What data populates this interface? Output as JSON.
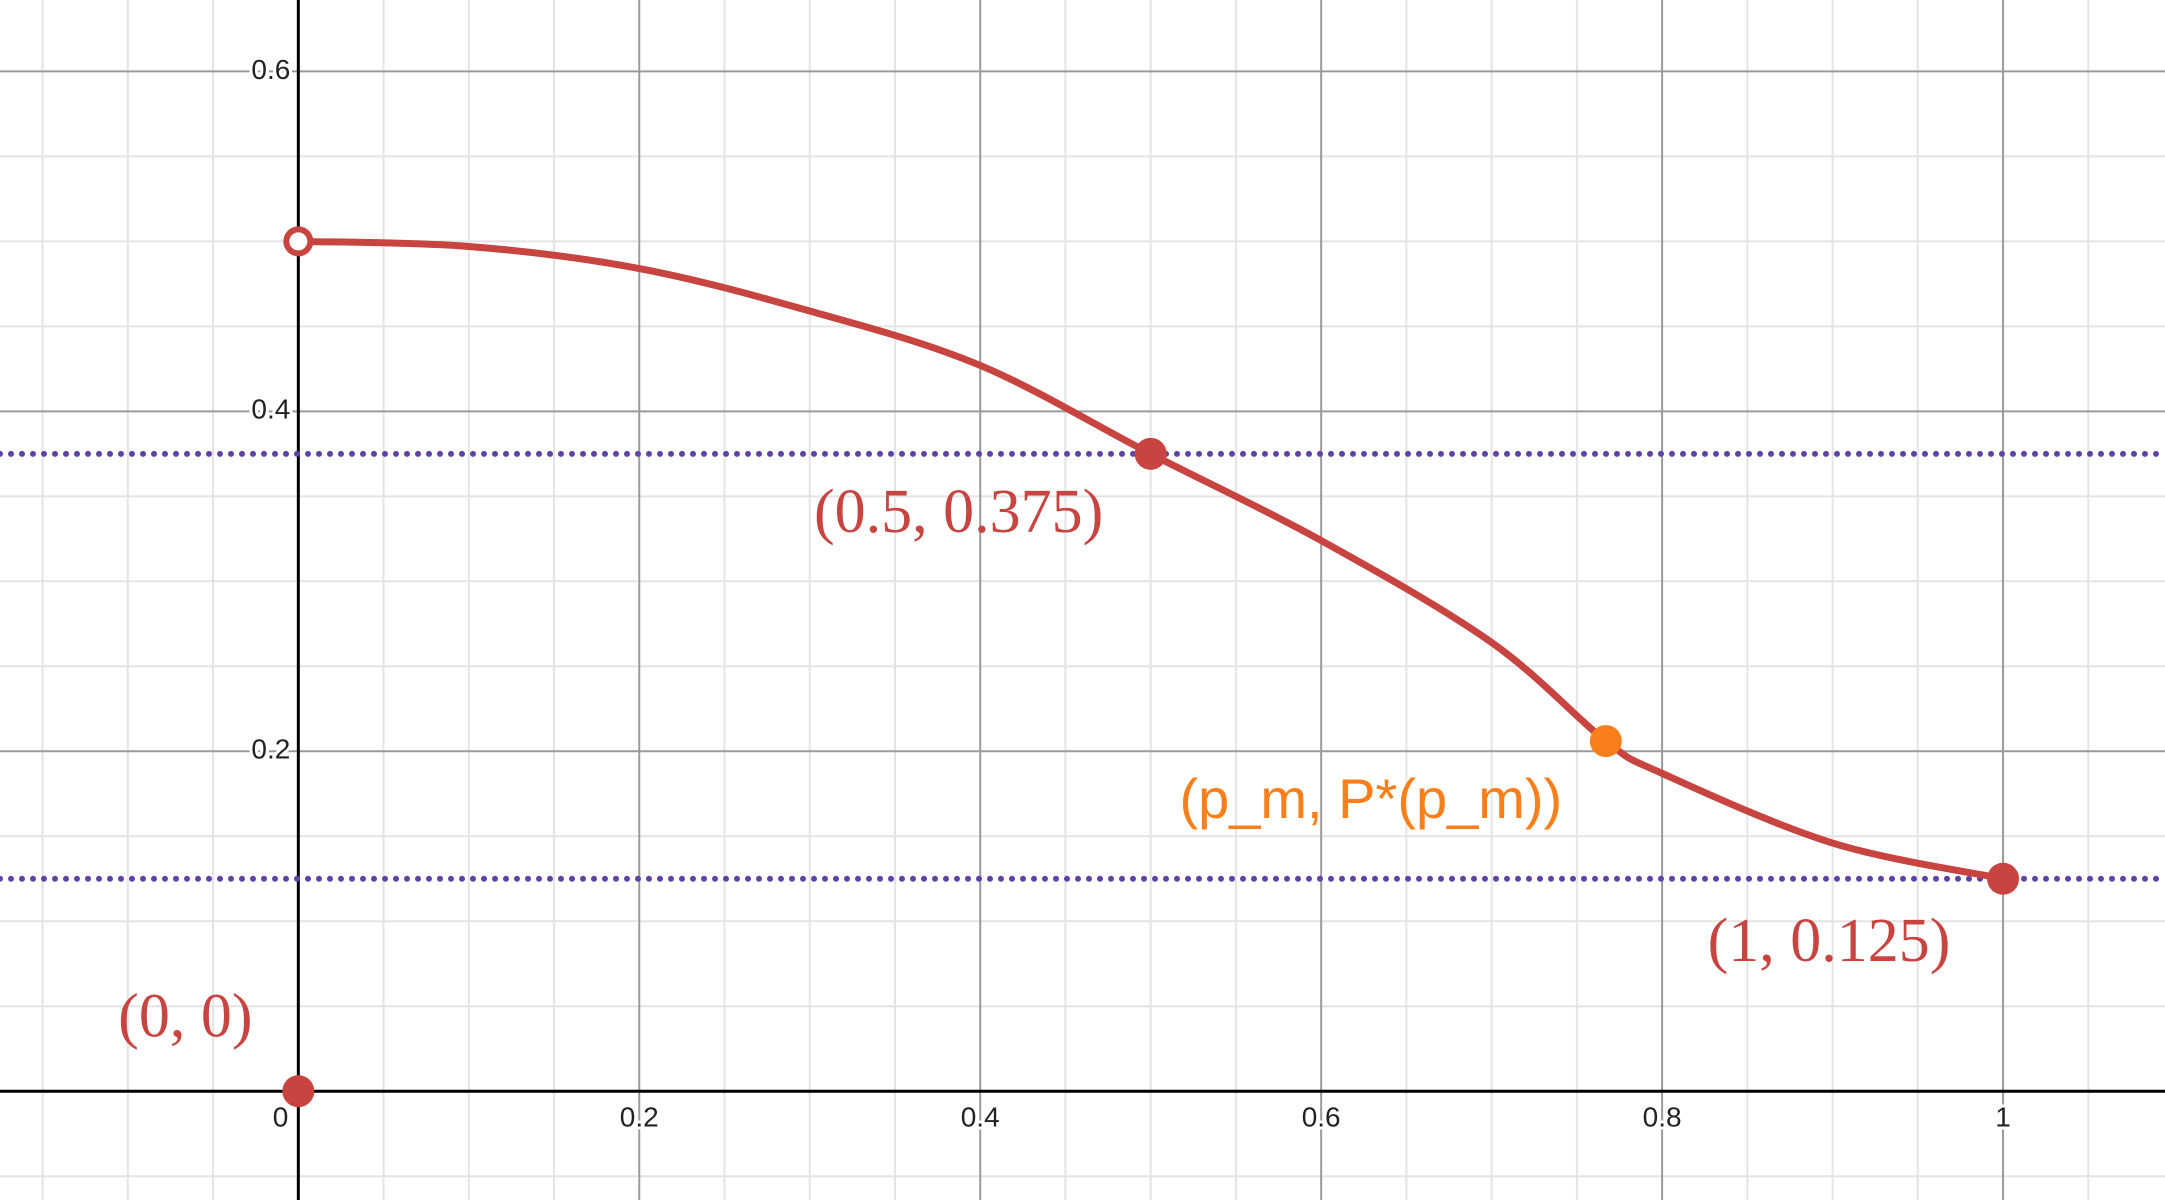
{
  "chart_data": {
    "type": "line",
    "xlim": [
      -0.175,
      1.095
    ],
    "ylim": [
      -0.064,
      0.642
    ],
    "xticks": [
      0,
      0.2,
      0.4,
      0.6,
      0.8,
      1
    ],
    "yticks": [
      0.2,
      0.4,
      0.6
    ],
    "x_minor_ticks": [
      -0.15,
      -0.1,
      -0.05,
      0.05,
      0.1,
      0.15,
      0.25,
      0.3,
      0.35,
      0.45,
      0.5,
      0.55,
      0.65,
      0.7,
      0.75,
      0.85,
      0.9,
      0.95,
      1.05
    ],
    "y_minor_ticks": [
      -0.05,
      0.05,
      0.1,
      0.15,
      0.25,
      0.3,
      0.35,
      0.45,
      0.5,
      0.55
    ],
    "grid": true,
    "curve": {
      "color": "#c74440",
      "x": [
        0,
        0.1,
        0.2,
        0.3,
        0.4,
        0.5,
        0.6,
        0.7,
        0.767,
        0.8,
        0.9,
        1
      ],
      "values": [
        0.5,
        0.497,
        0.484,
        0.459,
        0.427,
        0.375,
        0.324,
        0.264,
        0.206,
        0.187,
        0.146,
        0.125
      ]
    },
    "open_point": {
      "x": 0,
      "y": 0.5,
      "color": "#c74440"
    },
    "hlines": [
      {
        "y": 0.375,
        "color": "#6042a6"
      },
      {
        "y": 0.125,
        "color": "#6042a6"
      }
    ],
    "points": [
      {
        "x": 0,
        "y": 0,
        "label": "(0, 0)",
        "color": "#c74440"
      },
      {
        "x": 0.5,
        "y": 0.375,
        "label": "(0.5, 0.375)",
        "color": "#c74440"
      },
      {
        "x": 1,
        "y": 0.125,
        "label": "(1, 0.125)",
        "color": "#c74440"
      },
      {
        "x": 0.767,
        "y": 0.206,
        "label": "(p_m, P*(p_m))",
        "color": "#fa7e19"
      }
    ]
  }
}
